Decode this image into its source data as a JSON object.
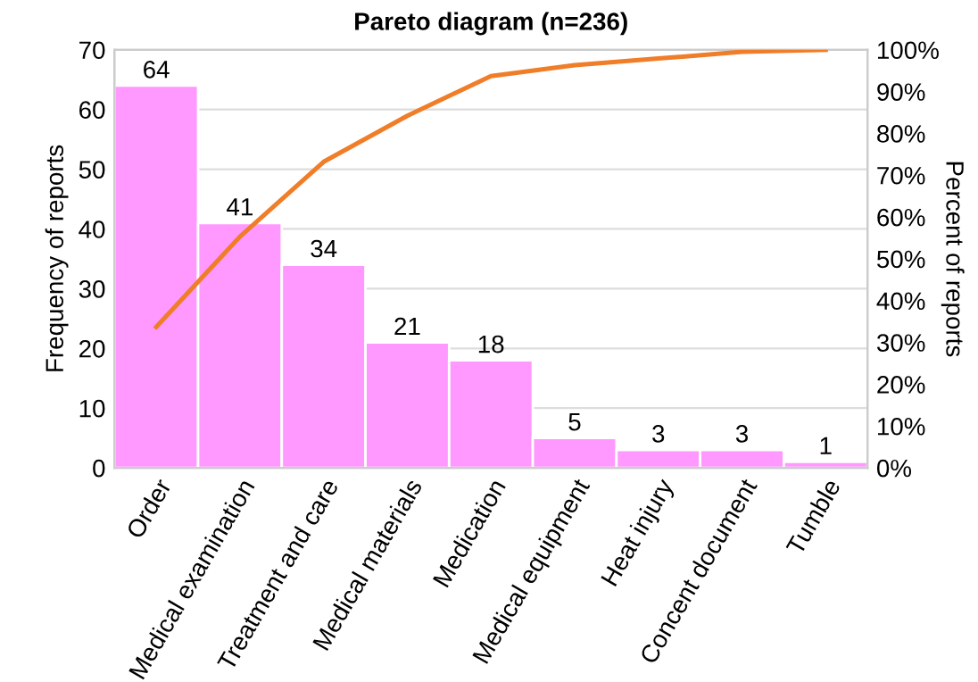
{
  "chart_data": {
    "type": "bar",
    "title": "Pareto diagram (n=236)",
    "ylabel": "Frequency of reports",
    "y2label": "Percent of reports",
    "categories": [
      "Order",
      "Medical examination",
      "Treatment and care",
      "Medical materials",
      "Medication",
      "Medical equipment",
      "Heat injury",
      "Concent document",
      "Tumble"
    ],
    "series": [
      {
        "color": "#ff99ff",
        "values": [
          64,
          41,
          34,
          21,
          18,
          5,
          3,
          3,
          1
        ],
        "value_labels": [
          "64",
          "41",
          "34",
          "21",
          "18",
          "5",
          "3",
          "3",
          "1"
        ]
      },
      {
        "type": "line",
        "axis": "y2",
        "color": "#f07d28",
        "values": [
          33.7,
          55.3,
          73.2,
          84.2,
          93.7,
          96.3,
          97.9,
          99.5,
          100
        ]
      }
    ],
    "ylim": [
      0,
      70
    ],
    "yticks": [
      0,
      10,
      20,
      30,
      40,
      50,
      60,
      70
    ],
    "y2lim": [
      0,
      100
    ],
    "y2ticks": [
      {
        "value": 0,
        "label": "0%"
      },
      {
        "value": 10,
        "label": "10%"
      },
      {
        "value": 20,
        "label": "20%"
      },
      {
        "value": 30,
        "label": "30%"
      },
      {
        "value": 40,
        "label": "40%"
      },
      {
        "value": 50,
        "label": "50%"
      },
      {
        "value": 60,
        "label": "60%"
      },
      {
        "value": 70,
        "label": "70%"
      },
      {
        "value": 80,
        "label": "80%"
      },
      {
        "value": 90,
        "label": "90%"
      },
      {
        "value": 100,
        "label": "100%"
      }
    ],
    "grid": "y",
    "marker": "none",
    "line_style": "solid"
  }
}
